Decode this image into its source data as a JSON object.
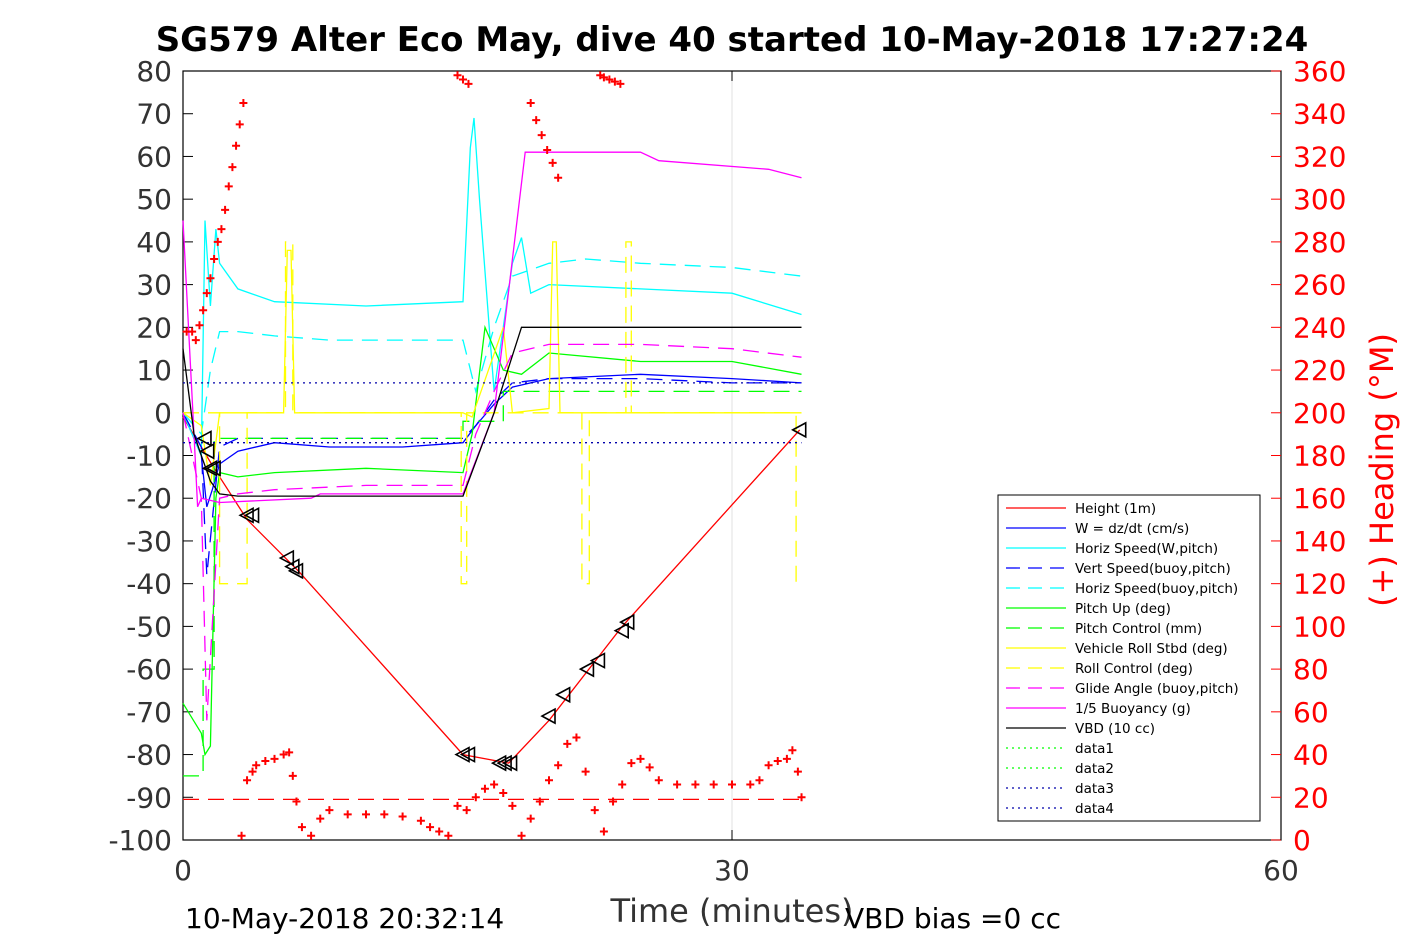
{
  "colors": {
    "red": "#ff0000",
    "blue": "#0000ff",
    "cyan": "#00ffff",
    "green": "#00ff00",
    "yellow": "#ffff00",
    "magenta": "#ff00ff",
    "black": "#000000",
    "navy": "#0000aa",
    "grid": "#e0e0e0",
    "heading_axis": "#ff0000"
  },
  "chart_data": {
    "type": "line",
    "title": "SG579 Alter Eco May, dive 40 started 10-May-2018 17:27:24",
    "xlabel": "Time (minutes)",
    "ylabel_right": "(+) Heading (°M)",
    "footer_left": "10-May-2018 20:32:14",
    "footer_right": "VBD bias =0 cc",
    "xlim": [
      0,
      60
    ],
    "ylim": [
      -100,
      80
    ],
    "y2lim": [
      0,
      360
    ],
    "xticks": [
      "0",
      "30",
      "60"
    ],
    "yticks": [
      "80",
      "70",
      "60",
      "50",
      "40",
      "30",
      "20",
      "10",
      "0",
      "-10",
      "-20",
      "-30",
      "-40",
      "-50",
      "-60",
      "-70",
      "-80",
      "-90",
      "-100"
    ],
    "y2ticks": [
      "360",
      "340",
      "320",
      "300",
      "280",
      "260",
      "240",
      "220",
      "200",
      "180",
      "160",
      "140",
      "120",
      "100",
      "80",
      "60",
      "40",
      "20",
      "0"
    ],
    "grid": "x-major",
    "legend_position": "lower-right",
    "legend": [
      "Height (1m)",
      "W = dz/dt (cm/s)",
      "Horiz Speed(W,pitch)",
      "Vert Speed(buoy,pitch)",
      "Horiz Speed(buoy,pitch)",
      "Pitch Up (deg)",
      "Pitch Control (mm)",
      "Vehicle Roll Stbd (deg)",
      "Roll Control (deg)",
      "Glide Angle (buoy,pitch)",
      "1/5 Buoyancy (g)",
      "VBD (10 cc)",
      "data1",
      "data2",
      "data3",
      "data4"
    ],
    "series": [
      {
        "name": "Height (1m)",
        "color": "red",
        "style": "solid",
        "x": [
          0,
          1.0,
          1.7,
          3.5,
          6.3,
          15.3,
          17.8,
          20.0,
          24.0,
          33.7
        ],
        "y": [
          -1,
          -8,
          -13,
          -25,
          -37,
          -80,
          -82,
          -72,
          -50,
          -4
        ]
      },
      {
        "name": "W = dz/dt (cm/s)",
        "color": "blue",
        "style": "solid",
        "x": [
          0,
          1.0,
          1.3,
          1.6,
          2.0,
          3,
          5,
          8,
          12,
          15.3,
          16,
          17,
          18,
          20,
          25,
          30,
          33.8
        ],
        "y": [
          0,
          -10,
          -22,
          -18,
          -12,
          -9,
          -7,
          -8,
          -8,
          -7,
          -3,
          2,
          6,
          8,
          9,
          8,
          7
        ]
      },
      {
        "name": "Horiz Speed(W,pitch)",
        "color": "cyan",
        "style": "solid",
        "x": [
          0,
          1.0,
          1.2,
          1.5,
          1.8,
          2.0,
          3,
          5,
          10,
          15.3,
          15.7,
          15.9,
          16.2,
          17,
          18,
          18.5,
          19,
          20,
          25,
          30,
          33.8
        ],
        "y": [
          0,
          -10,
          45,
          25,
          43,
          35,
          29,
          26,
          25,
          26,
          62,
          69,
          50,
          5,
          35,
          41,
          28,
          30,
          29,
          28,
          23
        ]
      },
      {
        "name": "Vert Speed(buoy,pitch)",
        "color": "blue",
        "style": "dashed",
        "x": [
          0,
          1.0,
          1.3,
          1.6,
          2.0,
          3,
          5,
          10,
          15.3,
          16,
          17,
          18,
          20,
          25,
          30,
          33.8
        ],
        "y": [
          0,
          -8,
          -38,
          -25,
          -8,
          -6,
          -6,
          -6,
          -6,
          -3,
          3,
          7,
          8,
          8,
          7,
          7
        ]
      },
      {
        "name": "Horiz Speed(buoy,pitch)",
        "color": "cyan",
        "style": "dashed",
        "x": [
          0,
          1.0,
          1.5,
          2.0,
          3,
          5,
          8,
          12,
          15.3,
          16,
          17,
          18,
          20,
          22,
          25,
          30,
          33.8
        ],
        "y": [
          0,
          -5,
          10,
          19,
          19,
          18,
          17,
          17,
          17,
          5,
          20,
          32,
          35,
          36,
          35,
          34,
          32
        ]
      },
      {
        "name": "Pitch Up (deg)",
        "color": "green",
        "style": "solid",
        "x": [
          0,
          1.0,
          1.2,
          1.5,
          1.8,
          2.0,
          3,
          5,
          10,
          15.3,
          15.8,
          16.5,
          17.5,
          18.5,
          20,
          25,
          30,
          33.8
        ],
        "y": [
          -68,
          -75,
          -80,
          -78,
          -20,
          -14,
          -15,
          -14,
          -13,
          -14,
          -5,
          20,
          10,
          9,
          14,
          12,
          12,
          9
        ]
      },
      {
        "name": "Pitch Control (mm)",
        "color": "green",
        "style": "dashed",
        "x": [
          0,
          1.1,
          1.1,
          1.7,
          1.7,
          15.3,
          15.3,
          17.5,
          17.5,
          33.8
        ],
        "y": [
          -85,
          -85,
          -60,
          -60,
          -6,
          -6,
          -2,
          -2,
          5,
          5
        ]
      },
      {
        "name": "Vehicle Roll Stbd (deg)",
        "color": "yellow",
        "style": "solid",
        "x": [
          0,
          1.0,
          1.5,
          2.0,
          5.5,
          5.7,
          5.9,
          6.1,
          15.3,
          15.8,
          17.5,
          18,
          20,
          20.2,
          20.4,
          20.6,
          25,
          33.8
        ],
        "y": [
          0,
          -3,
          -17,
          0,
          0,
          38,
          38,
          0,
          0,
          -1,
          20,
          0,
          1,
          40,
          40,
          0,
          0,
          0
        ]
      },
      {
        "name": "Roll Control (deg)",
        "color": "yellow",
        "style": "dashed",
        "x": [
          0,
          2.0,
          2.0,
          3.5,
          3.5,
          5.6,
          5.6,
          6.0,
          6.0,
          15.2,
          15.2,
          15.5,
          15.5,
          21.8,
          21.8,
          22.2,
          22.2,
          24.2,
          24.2,
          24.5,
          24.5,
          33.5,
          33.5,
          33.8
        ],
        "y": [
          0,
          0,
          -40,
          -40,
          0,
          0,
          40,
          40,
          0,
          0,
          -40,
          -40,
          0,
          0,
          -40,
          -40,
          0,
          0,
          40,
          40,
          0,
          0,
          -40,
          -40
        ]
      },
      {
        "name": "Glide Angle (buoy,pitch)",
        "color": "magenta",
        "style": "dashed",
        "x": [
          0,
          1.0,
          1.3,
          1.8,
          2.0,
          3,
          5,
          10,
          15.3,
          16,
          17,
          18,
          20,
          25,
          30,
          33.8
        ],
        "y": [
          0,
          -20,
          -72,
          -35,
          -20,
          -19,
          -18,
          -17,
          -17,
          -5,
          5,
          14,
          16,
          16,
          15,
          13
        ]
      },
      {
        "name": "1/5 Buoyancy (g)",
        "color": "magenta",
        "style": "solid",
        "x": [
          0,
          0.6,
          0.8,
          1.0,
          2.0,
          7.0,
          7.5,
          15.3,
          17.0,
          18.7,
          25.0,
          26.0,
          32.0,
          33.8
        ],
        "y": [
          45,
          -5,
          -22,
          -20,
          -21,
          -20,
          -19,
          -19,
          0,
          61,
          61,
          59,
          57,
          55
        ]
      },
      {
        "name": "VBD (10 cc)",
        "color": "black",
        "style": "solid",
        "x": [
          0,
          0.6,
          1.0,
          1.5,
          2.0,
          3.0,
          15.3,
          17.0,
          18.5,
          33.8
        ],
        "y": [
          15,
          -5,
          -10,
          -16,
          -19,
          -19.5,
          -19.5,
          0,
          20,
          20
        ]
      },
      {
        "name": "data1",
        "color": "green",
        "style": "dotted",
        "x": [],
        "y": []
      },
      {
        "name": "data2",
        "color": "green",
        "style": "dotted",
        "x": [],
        "y": []
      },
      {
        "name": "data3",
        "color": "navy",
        "style": "dotted",
        "x": [
          0,
          33.8
        ],
        "y": [
          7,
          7
        ]
      },
      {
        "name": "data4",
        "color": "navy",
        "style": "dotted",
        "x": [
          0,
          33.8
        ],
        "y": [
          -7,
          -7
        ]
      },
      {
        "name": "",
        "color": "red",
        "style": "dashed",
        "x": [
          0,
          33.8
        ],
        "y": [
          -90.5,
          -90.5
        ]
      }
    ],
    "markers": {
      "marker": "triangle-left",
      "color": "black",
      "x": [
        1.2,
        1.35,
        1.5,
        1.7,
        3.5,
        3.8,
        5.7,
        6.0,
        6.2,
        15.3,
        15.6,
        17.3,
        17.6,
        17.9,
        20.0,
        20.8,
        22.1,
        22.7,
        24.0,
        24.3,
        33.7
      ],
      "y": [
        -6,
        -9,
        -13,
        -13,
        -24,
        -24,
        -34,
        -36,
        -37,
        -80,
        -80,
        -82,
        -82,
        -82,
        -71,
        -66,
        -60,
        -58,
        -51,
        -49,
        -4
      ]
    },
    "heading_points": {
      "marker": "plus",
      "color": "red",
      "axis": "right",
      "x": [
        0.2,
        0.5,
        0.7,
        0.9,
        1.1,
        1.3,
        1.5,
        1.7,
        1.9,
        2.1,
        2.3,
        2.5,
        2.7,
        2.9,
        3.1,
        3.3,
        15.0,
        15.3,
        15.6,
        19.0,
        19.3,
        19.6,
        19.9,
        20.2,
        20.5,
        22.8,
        23.0,
        23.3,
        23.6,
        23.9,
        3.2,
        3.5,
        3.8,
        4.0,
        4.5,
        5.0,
        5.5,
        5.8,
        6.0,
        6.2,
        6.5,
        7.0,
        7.5,
        8.0,
        9.0,
        10.0,
        11.0,
        12.0,
        13.0,
        13.5,
        14.0,
        14.5,
        15.0,
        15.5,
        16.0,
        16.5,
        17.0,
        17.5,
        18.0,
        18.5,
        19.0,
        19.5,
        20.0,
        20.5,
        21.0,
        21.5,
        22.0,
        22.5,
        23.0,
        23.5,
        24.0,
        24.5,
        25.0,
        25.5,
        26.0,
        27.0,
        28.0,
        29.0,
        30.0,
        31.0,
        31.5,
        32.0,
        32.5,
        33.0,
        33.3,
        33.6,
        33.8
      ],
      "y": [
        238,
        238,
        234,
        241,
        248,
        256,
        263,
        272,
        280,
        286,
        295,
        306,
        315,
        325,
        335,
        345,
        358,
        356,
        354,
        345,
        337,
        330,
        323,
        317,
        310,
        358,
        357,
        356,
        355,
        354,
        2,
        28,
        32,
        35,
        37,
        38,
        40,
        41,
        30,
        18,
        6,
        2,
        10,
        14,
        12,
        12,
        12,
        11,
        9,
        6,
        4,
        2,
        16,
        14,
        20,
        24,
        26,
        22,
        16,
        2,
        10,
        18,
        28,
        35,
        45,
        48,
        32,
        14,
        4,
        18,
        26,
        36,
        38,
        34,
        28,
        26,
        26,
        26,
        26,
        26,
        28,
        35,
        37,
        38,
        42,
        32,
        20
      ]
    }
  }
}
